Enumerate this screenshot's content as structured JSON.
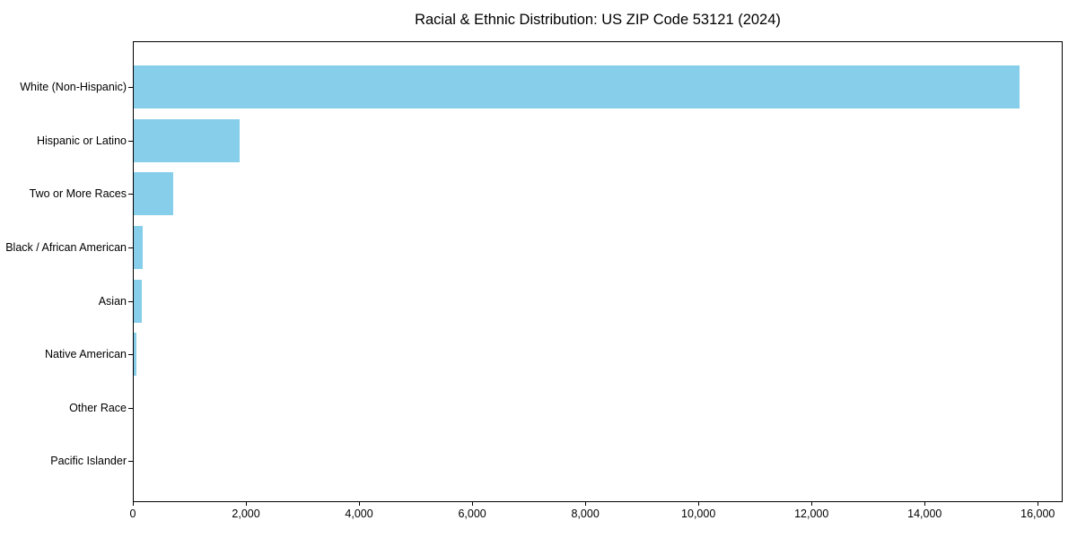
{
  "title": "Racial & Ethnic Distribution: US ZIP Code 53121 (2024)",
  "colors": {
    "bar": "#87ceeb",
    "background": "#ffffff",
    "text": "#000000",
    "axis": "#000000"
  },
  "chart_data": {
    "type": "bar",
    "orientation": "horizontal",
    "title": "Racial & Ethnic Distribution: US ZIP Code 53121 (2024)",
    "categories": [
      "White (Non-Hispanic)",
      "Hispanic or Latino",
      "Two or More Races",
      "Black / African American",
      "Asian",
      "Native American",
      "Other Race",
      "Pacific Islander"
    ],
    "values": [
      15670,
      1870,
      700,
      160,
      140,
      45,
      0,
      0
    ],
    "xlabel": "",
    "ylabel": "",
    "xlim": [
      0,
      16440
    ],
    "xticks": [
      0,
      2000,
      4000,
      6000,
      8000,
      10000,
      12000,
      14000,
      16000
    ],
    "xtick_labels": [
      "0",
      "2,000",
      "4,000",
      "6,000",
      "8,000",
      "10,000",
      "12,000",
      "14,000",
      "16,000"
    ],
    "grid": false,
    "legend": null,
    "bar_color": "#87ceeb"
  }
}
